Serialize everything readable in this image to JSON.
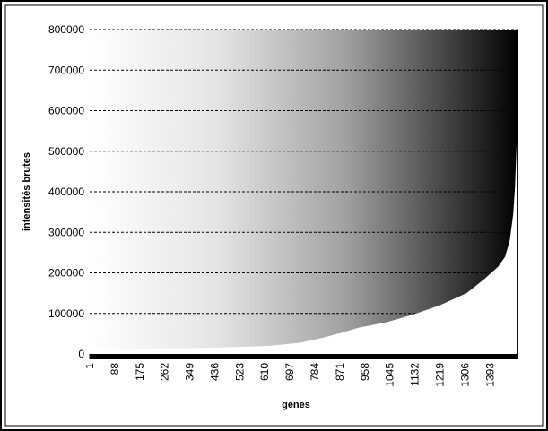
{
  "chart_data": {
    "type": "area",
    "x_label": "gènes",
    "y_label": "intensités brutes",
    "series": [
      {
        "color": "#ffffff",
        "x": [
          1,
          126,
          407,
          625,
          734,
          812,
          875,
          937,
          1031,
          1125,
          1218,
          1312,
          1374,
          1421,
          1446,
          1462,
          1474,
          1480,
          1486
        ],
        "values": [
          11000,
          13000,
          15000,
          20000,
          28000,
          40000,
          52000,
          65000,
          78000,
          97000,
          120000,
          150000,
          185000,
          215000,
          240000,
          280000,
          345000,
          410000,
          520000
        ]
      }
    ],
    "xlim": [
      1,
      1492
    ],
    "xticks": [
      1,
      88,
      175,
      262,
      349,
      436,
      523,
      610,
      697,
      784,
      871,
      958,
      1045,
      1132,
      1219,
      1306,
      1393
    ],
    "ylim": [
      0,
      800000
    ],
    "yticks": [
      0,
      100000,
      200000,
      300000,
      400000,
      500000,
      600000,
      700000,
      800000
    ],
    "grid": true
  }
}
